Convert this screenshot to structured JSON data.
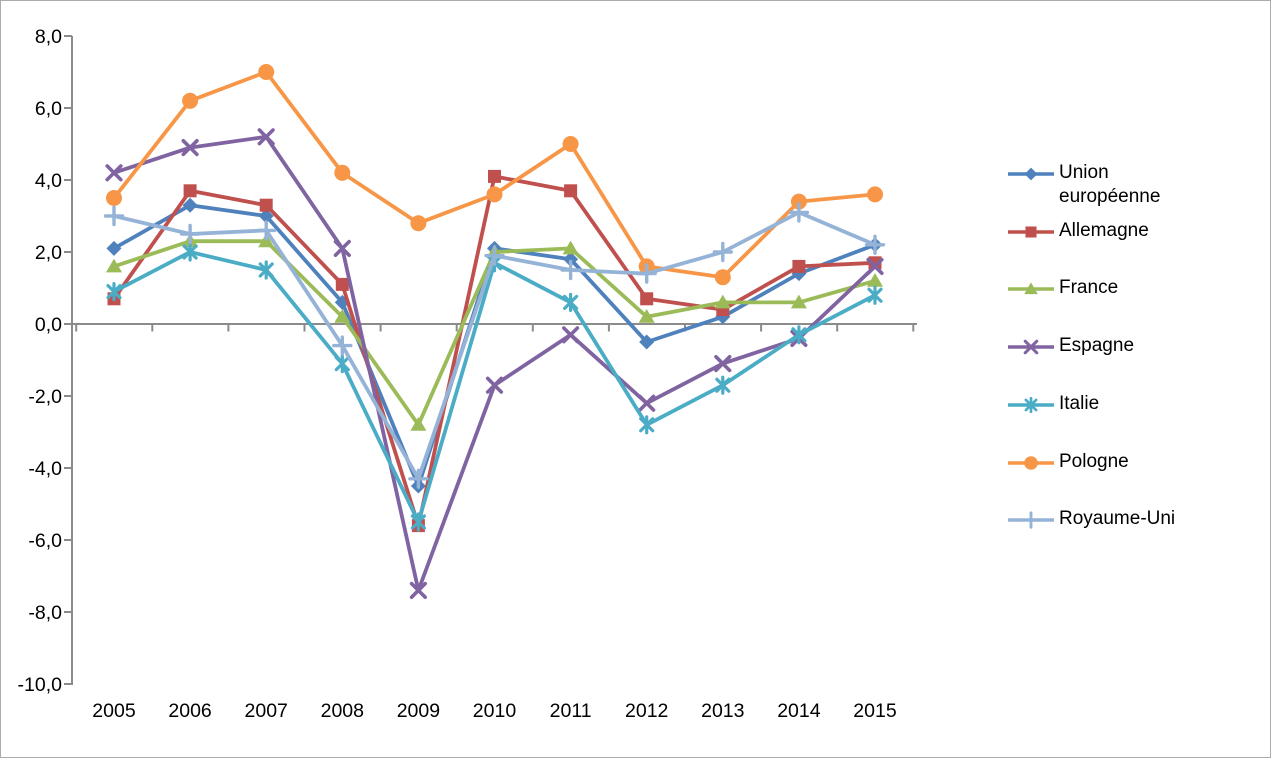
{
  "chart_data": {
    "type": "line",
    "categories": [
      "2005",
      "2006",
      "2007",
      "2008",
      "2009",
      "2010",
      "2011",
      "2012",
      "2013",
      "2014",
      "2015"
    ],
    "series": [
      {
        "name": "Union européenne",
        "color": "#4F81BD",
        "marker": "diamond",
        "values": [
          2.1,
          3.3,
          3.0,
          0.6,
          -4.5,
          2.1,
          1.8,
          -0.5,
          0.2,
          1.4,
          2.2
        ]
      },
      {
        "name": "Allemagne",
        "color": "#C0504D",
        "marker": "square",
        "values": [
          0.7,
          3.7,
          3.3,
          1.1,
          -5.6,
          4.1,
          3.7,
          0.7,
          0.4,
          1.6,
          1.7
        ]
      },
      {
        "name": "France",
        "color": "#9BBB59",
        "marker": "triangle",
        "values": [
          1.6,
          2.3,
          2.3,
          0.2,
          -2.8,
          2.0,
          2.1,
          0.2,
          0.6,
          0.6,
          1.2
        ]
      },
      {
        "name": "Espagne",
        "color": "#8064A2",
        "marker": "x",
        "values": [
          4.2,
          4.9,
          5.2,
          2.1,
          -7.4,
          -1.7,
          -0.3,
          -2.2,
          -1.1,
          -0.4,
          1.6
        ]
      },
      {
        "name": "Italie",
        "color": "#4BACC6",
        "marker": "star",
        "values": [
          0.9,
          2.0,
          1.5,
          -1.1,
          -5.5,
          1.7,
          0.6,
          -2.8,
          -1.7,
          -0.3,
          0.8
        ]
      },
      {
        "name": "Pologne",
        "color": "#F79646",
        "marker": "circle",
        "values": [
          3.5,
          6.2,
          7.0,
          4.2,
          2.8,
          3.6,
          5.0,
          1.6,
          1.3,
          3.4,
          3.6
        ]
      },
      {
        "name": "Royaume-Uni",
        "color": "#95B3D7",
        "marker": "plus",
        "values": [
          3.0,
          2.5,
          2.6,
          -0.6,
          -4.3,
          1.9,
          1.5,
          1.4,
          2.0,
          3.1,
          2.2
        ]
      }
    ],
    "y_axis": {
      "min": -10,
      "max": 8,
      "step": 2,
      "tick_labels": [
        "8,0",
        "6,0",
        "4,0",
        "2,0",
        "0,0",
        "-2,0",
        "-4,0",
        "-6,0",
        "-8,0",
        "-10,0"
      ]
    },
    "x_axis": {
      "tick_labels": [
        "2005",
        "2006",
        "2007",
        "2008",
        "2009",
        "2010",
        "2011",
        "2012",
        "2013",
        "2014",
        "2015"
      ]
    },
    "title": "",
    "xlabel": "",
    "ylabel": "",
    "grid": false,
    "legend_position": "right",
    "axis_color": "#8B8B8B",
    "text_color": "#000000",
    "background": "#FFFFFF"
  }
}
